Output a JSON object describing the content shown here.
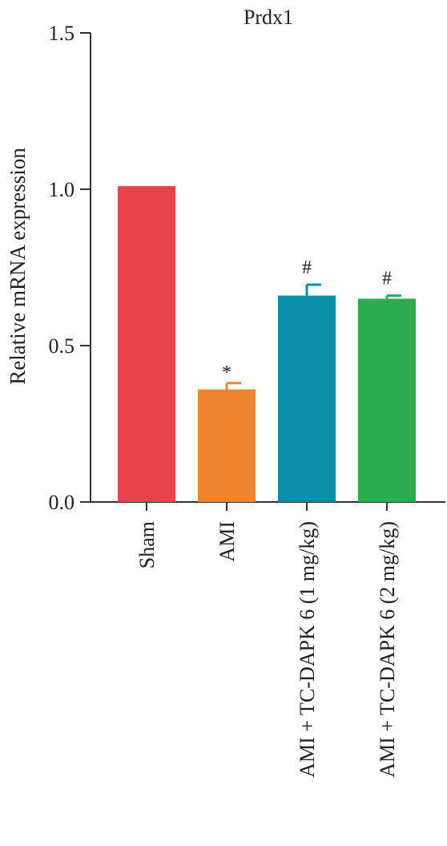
{
  "chart_data": {
    "type": "bar",
    "title": "Prdx1",
    "xlabel": "",
    "ylabel": "Relative mRNA expression",
    "ylim": [
      0,
      1.5
    ],
    "yticks": [
      "0.0",
      "0.5",
      "1.0",
      "1.5"
    ],
    "ytick_values": [
      0.0,
      0.5,
      1.0,
      1.5
    ],
    "grid": false,
    "categories": [
      "Sham",
      "AMI",
      "AMI + TC-DAPK 6 (1 mg/kg)",
      "AMI + TC-DAPK 6 (2 mg/kg)"
    ],
    "values": [
      1.01,
      0.36,
      0.66,
      0.65
    ],
    "errors": [
      0.0,
      0.02,
      0.035,
      0.01
    ],
    "annotations": [
      "",
      "*",
      "#",
      "#"
    ],
    "colors": [
      "#e8434a",
      "#ef8530",
      "#0b8fa8",
      "#2bac50"
    ]
  }
}
